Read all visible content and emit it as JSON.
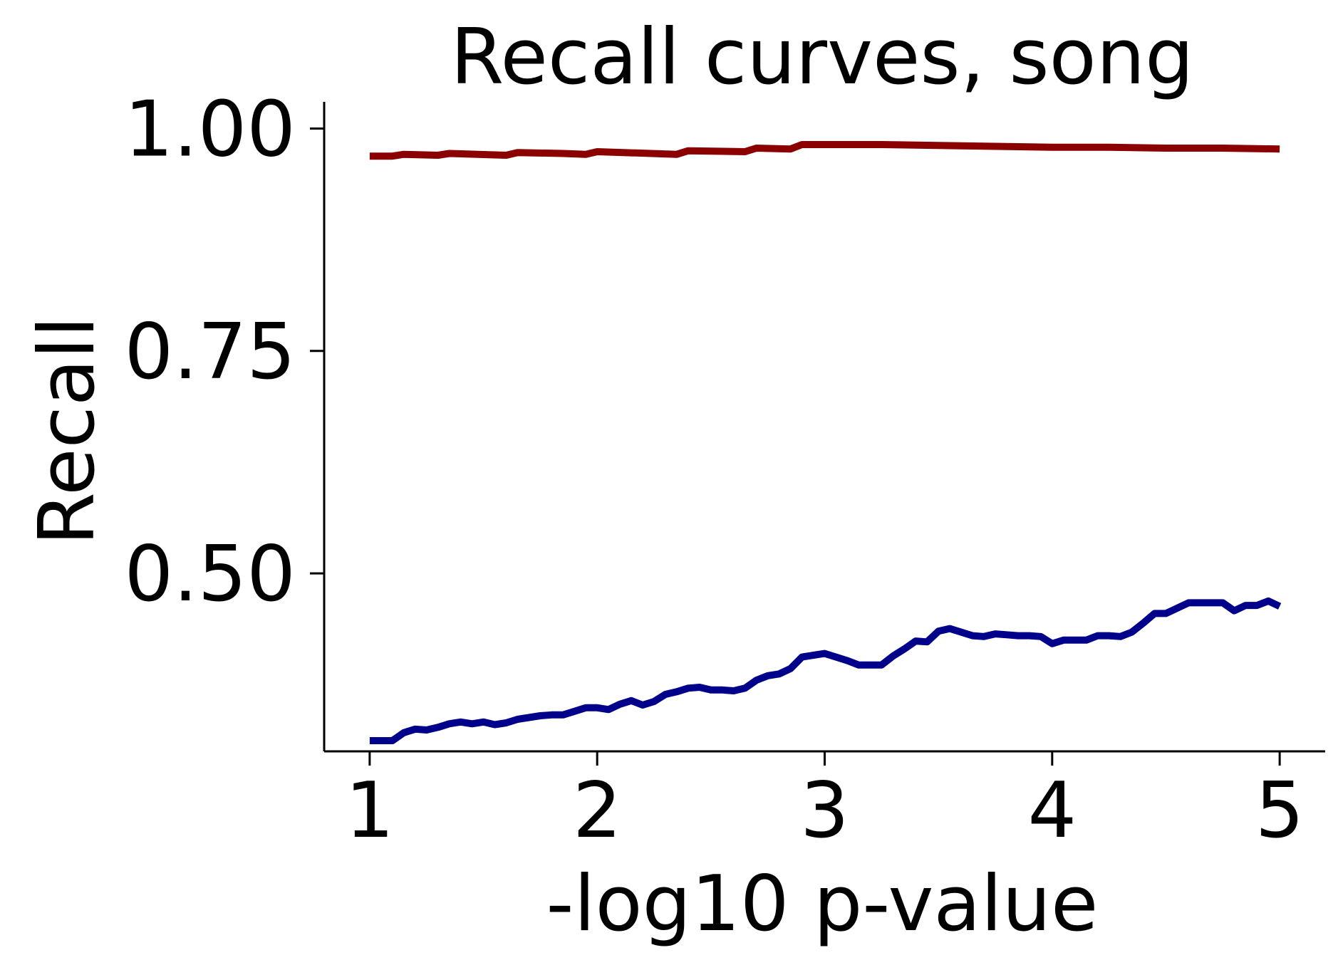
{
  "chart_data": {
    "type": "line",
    "title": "Recall curves, song",
    "xlabel": "-log10 p-value",
    "ylabel": "Recall",
    "xlim": [
      0.8,
      5.2
    ],
    "ylim": [
      0.3,
      1.03
    ],
    "xticks": [
      1,
      2,
      3,
      4,
      5
    ],
    "xtick_labels": [
      "1",
      "2",
      "3",
      "4",
      "5"
    ],
    "yticks": [
      0.5,
      0.75,
      1.0
    ],
    "ytick_labels": [
      "0.50",
      "0.75",
      "1.00"
    ],
    "grid": false,
    "series": [
      {
        "color": "#8b0000",
        "x": [
          1.0,
          1.1,
          1.15,
          1.3,
          1.35,
          1.6,
          1.65,
          1.85,
          1.95,
          2.0,
          2.35,
          2.4,
          2.65,
          2.7,
          2.85,
          2.9,
          3.25,
          3.5,
          3.75,
          4.0,
          4.25,
          4.5,
          4.75,
          5.0
        ],
        "y": [
          0.969,
          0.969,
          0.971,
          0.97,
          0.972,
          0.97,
          0.973,
          0.972,
          0.971,
          0.974,
          0.971,
          0.975,
          0.974,
          0.978,
          0.977,
          0.982,
          0.982,
          0.981,
          0.98,
          0.979,
          0.979,
          0.978,
          0.978,
          0.977
        ]
      },
      {
        "color": "#00008b",
        "x": [
          1.0,
          1.1,
          1.15,
          1.2,
          1.25,
          1.3,
          1.35,
          1.4,
          1.45,
          1.5,
          1.55,
          1.6,
          1.65,
          1.7,
          1.75,
          1.8,
          1.85,
          1.9,
          1.95,
          2.0,
          2.05,
          2.1,
          2.15,
          2.2,
          2.25,
          2.3,
          2.35,
          2.4,
          2.45,
          2.5,
          2.55,
          2.6,
          2.65,
          2.7,
          2.75,
          2.8,
          2.85,
          2.9,
          2.95,
          3.0,
          3.05,
          3.1,
          3.15,
          3.2,
          3.25,
          3.3,
          3.35,
          3.4,
          3.45,
          3.5,
          3.55,
          3.6,
          3.65,
          3.7,
          3.75,
          3.8,
          3.85,
          3.9,
          3.95,
          4.0,
          4.05,
          4.1,
          4.15,
          4.2,
          4.25,
          4.3,
          4.35,
          4.4,
          4.45,
          4.5,
          4.55,
          4.6,
          4.65,
          4.7,
          4.75,
          4.8,
          4.85,
          4.9,
          4.95,
          5.0
        ],
        "y": [
          0.312,
          0.312,
          0.321,
          0.325,
          0.324,
          0.327,
          0.331,
          0.333,
          0.331,
          0.333,
          0.33,
          0.332,
          0.336,
          0.338,
          0.34,
          0.341,
          0.341,
          0.345,
          0.349,
          0.349,
          0.347,
          0.353,
          0.357,
          0.352,
          0.356,
          0.364,
          0.367,
          0.371,
          0.372,
          0.369,
          0.369,
          0.368,
          0.371,
          0.38,
          0.385,
          0.387,
          0.393,
          0.406,
          0.408,
          0.41,
          0.406,
          0.402,
          0.397,
          0.397,
          0.397,
          0.407,
          0.415,
          0.424,
          0.423,
          0.435,
          0.438,
          0.434,
          0.43,
          0.429,
          0.432,
          0.431,
          0.43,
          0.43,
          0.429,
          0.421,
          0.425,
          0.425,
          0.425,
          0.43,
          0.43,
          0.429,
          0.434,
          0.444,
          0.455,
          0.455,
          0.461,
          0.467,
          0.467,
          0.467,
          0.467,
          0.458,
          0.464,
          0.464,
          0.469,
          0.463
        ]
      }
    ]
  }
}
